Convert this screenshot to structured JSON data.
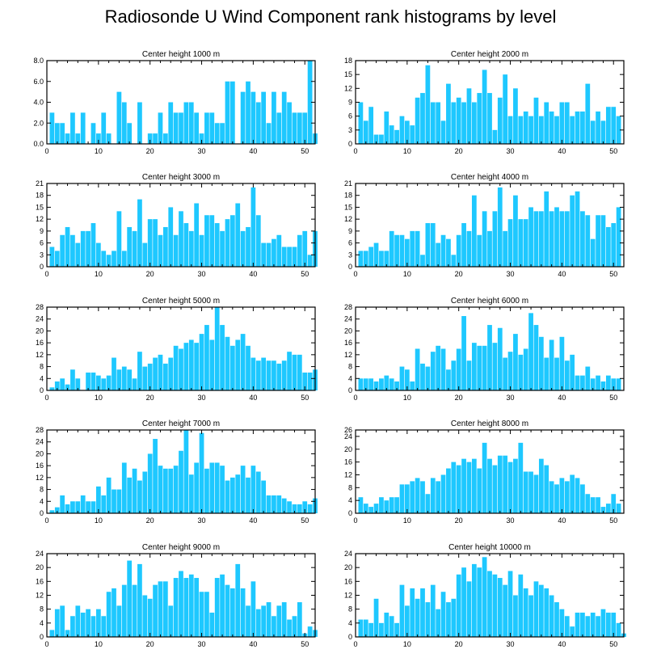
{
  "title": "Radiosonde U Wind Component rank histograms by level",
  "colors": {
    "bar": "#1ec8ff",
    "axis": "#000000"
  },
  "chart_data": [
    {
      "type": "bar",
      "title": "Center height 1000 m",
      "xlim": [
        0,
        52
      ],
      "ylim": [
        0,
        8
      ],
      "xticks": [
        0,
        10,
        20,
        30,
        40,
        50
      ],
      "xtick_labels": [
        "0",
        "10",
        "20",
        "30",
        "40",
        "50"
      ],
      "yticks": [
        0,
        2,
        4,
        6,
        8
      ],
      "ytick_labels": [
        "0.0",
        "2.0",
        "4.0",
        "6.0",
        "8.0"
      ],
      "values": [
        3,
        2,
        2,
        1,
        3,
        1,
        3,
        0,
        2,
        1,
        3,
        1,
        0,
        5,
        4,
        2,
        0,
        4,
        0,
        1,
        1,
        3,
        1,
        4,
        3,
        3,
        4,
        4,
        3,
        1,
        3,
        3,
        2,
        2,
        6,
        6,
        0,
        5,
        6,
        5,
        4,
        5,
        2,
        5,
        3,
        5,
        4,
        3,
        3,
        3,
        8,
        1
      ]
    },
    {
      "type": "bar",
      "title": "Center height 2000 m",
      "xlim": [
        0,
        52
      ],
      "ylim": [
        0,
        18
      ],
      "xticks": [
        0,
        10,
        20,
        30,
        40,
        50
      ],
      "xtick_labels": [
        "0",
        "10",
        "20",
        "30",
        "40",
        "50"
      ],
      "yticks": [
        0,
        3,
        6,
        9,
        12,
        15,
        18
      ],
      "ytick_labels": [
        "0",
        "3",
        "6",
        "9",
        "12",
        "15",
        "18"
      ],
      "values": [
        9,
        5,
        8,
        2,
        2,
        7,
        4,
        3,
        6,
        5,
        4,
        10,
        11,
        17,
        9,
        9,
        5,
        13,
        9,
        10,
        9,
        12,
        9,
        11,
        16,
        11,
        3,
        10,
        15,
        6,
        12,
        6,
        7,
        6,
        10,
        6,
        9,
        7,
        6,
        9,
        9,
        6,
        7,
        7,
        13,
        5,
        7,
        5,
        8,
        8,
        6
      ]
    },
    {
      "type": "bar",
      "title": "Center height 3000 m",
      "xlim": [
        0,
        52
      ],
      "ylim": [
        0,
        21
      ],
      "xticks": [
        0,
        10,
        20,
        30,
        40,
        50
      ],
      "xtick_labels": [
        "0",
        "10",
        "20",
        "30",
        "40",
        "50"
      ],
      "yticks": [
        0,
        3,
        6,
        9,
        12,
        15,
        18,
        21
      ],
      "ytick_labels": [
        "0",
        "3",
        "6",
        "9",
        "12",
        "15",
        "18",
        "21"
      ],
      "values": [
        5,
        4,
        8,
        10,
        8,
        6,
        9,
        9,
        11,
        6,
        4,
        3,
        4,
        14,
        4,
        10,
        9,
        17,
        6,
        12,
        12,
        8,
        10,
        15,
        8,
        14,
        11,
        9,
        16,
        8,
        13,
        13,
        11,
        9,
        12,
        13,
        16,
        9,
        10,
        20,
        13,
        6,
        6,
        7,
        8,
        5,
        5,
        5,
        8,
        9,
        3,
        9
      ]
    },
    {
      "type": "bar",
      "title": "Center height 4000 m",
      "xlim": [
        0,
        52
      ],
      "ylim": [
        0,
        21
      ],
      "xticks": [
        0,
        10,
        20,
        30,
        40,
        50
      ],
      "xtick_labels": [
        "0",
        "10",
        "20",
        "30",
        "40",
        "50"
      ],
      "yticks": [
        0,
        3,
        6,
        9,
        12,
        15,
        18,
        21
      ],
      "ytick_labels": [
        "0",
        "3",
        "6",
        "9",
        "12",
        "15",
        "18",
        "21"
      ],
      "values": [
        4,
        4,
        5,
        6,
        4,
        4,
        9,
        8,
        8,
        7,
        9,
        9,
        3,
        11,
        11,
        6,
        8,
        7,
        3,
        8,
        11,
        9,
        18,
        8,
        14,
        9,
        14,
        20,
        9,
        12,
        18,
        12,
        12,
        15,
        14,
        14,
        19,
        14,
        15,
        14,
        14,
        18,
        19,
        14,
        13,
        7,
        13,
        13,
        10,
        11,
        15
      ]
    },
    {
      "type": "bar",
      "title": "Center height 5000 m",
      "xlim": [
        0,
        52
      ],
      "ylim": [
        0,
        28
      ],
      "xticks": [
        0,
        10,
        20,
        30,
        40,
        50
      ],
      "xtick_labels": [
        "0",
        "10",
        "20",
        "30",
        "40",
        "50"
      ],
      "yticks": [
        0,
        4,
        8,
        12,
        16,
        20,
        24,
        28
      ],
      "ytick_labels": [
        "0",
        "4",
        "8",
        "12",
        "16",
        "20",
        "24",
        "28"
      ],
      "values": [
        1,
        3,
        4,
        2,
        7,
        4,
        0,
        6,
        6,
        5,
        4,
        5,
        11,
        7,
        8,
        7,
        4,
        13,
        8,
        9,
        11,
        12,
        9,
        11,
        15,
        14,
        16,
        17,
        16,
        19,
        22,
        17,
        28,
        22,
        18,
        15,
        17,
        19,
        15,
        11,
        10,
        11,
        10,
        10,
        9,
        10,
        13,
        12,
        12,
        6,
        6,
        7
      ]
    },
    {
      "type": "bar",
      "title": "Center height 6000 m",
      "xlim": [
        0,
        52
      ],
      "ylim": [
        0,
        28
      ],
      "xticks": [
        0,
        10,
        20,
        30,
        40,
        50
      ],
      "xtick_labels": [
        "0",
        "10",
        "20",
        "30",
        "40",
        "50"
      ],
      "yticks": [
        0,
        4,
        8,
        12,
        16,
        20,
        24,
        28
      ],
      "ytick_labels": [
        "0",
        "4",
        "8",
        "12",
        "16",
        "20",
        "24",
        "28"
      ],
      "values": [
        4,
        4,
        4,
        3,
        4,
        5,
        4,
        3,
        8,
        7,
        3,
        14,
        9,
        8,
        13,
        15,
        14,
        7,
        10,
        14,
        25,
        10,
        16,
        15,
        15,
        22,
        16,
        21,
        11,
        13,
        19,
        12,
        14,
        26,
        22,
        18,
        11,
        17,
        11,
        18,
        10,
        12,
        5,
        5,
        8,
        4,
        5,
        3,
        5,
        4,
        4
      ]
    },
    {
      "type": "bar",
      "title": "Center height 7000 m",
      "xlim": [
        0,
        52
      ],
      "ylim": [
        0,
        28
      ],
      "xticks": [
        0,
        10,
        20,
        30,
        40,
        50
      ],
      "xtick_labels": [
        "0",
        "10",
        "20",
        "30",
        "40",
        "50"
      ],
      "yticks": [
        0,
        4,
        8,
        12,
        16,
        20,
        24,
        28
      ],
      "ytick_labels": [
        "0",
        "4",
        "8",
        "12",
        "16",
        "20",
        "24",
        "28"
      ],
      "values": [
        1,
        2,
        6,
        3,
        4,
        4,
        6,
        4,
        4,
        9,
        6,
        12,
        8,
        8,
        17,
        12,
        15,
        11,
        14,
        20,
        25,
        16,
        15,
        15,
        16,
        21,
        28,
        13,
        17,
        27,
        15,
        17,
        17,
        16,
        11,
        12,
        13,
        16,
        12,
        16,
        14,
        11,
        6,
        6,
        6,
        5,
        4,
        3,
        3,
        4,
        3,
        5
      ]
    },
    {
      "type": "bar",
      "title": "Center height 8000 m",
      "xlim": [
        0,
        52
      ],
      "ylim": [
        0,
        26
      ],
      "xticks": [
        0,
        10,
        20,
        30,
        40,
        50
      ],
      "xtick_labels": [
        "0",
        "10",
        "20",
        "30",
        "40",
        "50"
      ],
      "yticks": [
        0,
        4,
        8,
        12,
        16,
        20,
        24,
        26
      ],
      "ytick_labels": [
        "0",
        "4",
        "8",
        "12",
        "16",
        "20",
        "24",
        "26"
      ],
      "values": [
        5,
        3,
        2,
        3,
        5,
        4,
        5,
        5,
        9,
        9,
        10,
        11,
        10,
        6,
        11,
        10,
        12,
        14,
        16,
        15,
        17,
        16,
        17,
        14,
        22,
        17,
        15,
        18,
        18,
        16,
        17,
        22,
        13,
        13,
        12,
        17,
        15,
        10,
        9,
        11,
        10,
        12,
        11,
        9,
        6,
        5,
        5,
        2,
        3,
        6,
        3
      ]
    },
    {
      "type": "bar",
      "title": "Center height 9000 m",
      "xlim": [
        0,
        52
      ],
      "ylim": [
        0,
        24
      ],
      "xticks": [
        0,
        10,
        20,
        30,
        40,
        50
      ],
      "xtick_labels": [
        "0",
        "10",
        "20",
        "30",
        "40",
        "50"
      ],
      "yticks": [
        0,
        4,
        8,
        12,
        16,
        20,
        24
      ],
      "ytick_labels": [
        "0",
        "4",
        "8",
        "12",
        "16",
        "20",
        "24"
      ],
      "values": [
        2,
        8,
        9,
        2,
        6,
        9,
        7,
        8,
        6,
        8,
        6,
        13,
        14,
        9,
        15,
        22,
        15,
        21,
        12,
        11,
        15,
        16,
        16,
        9,
        17,
        19,
        17,
        18,
        17,
        13,
        13,
        7,
        17,
        18,
        15,
        14,
        21,
        14,
        9,
        16,
        8,
        9,
        10,
        6,
        9,
        10,
        5,
        6,
        10,
        1,
        3,
        2
      ]
    },
    {
      "type": "bar",
      "title": "Center height 10000 m",
      "xlim": [
        0,
        52
      ],
      "ylim": [
        0,
        24
      ],
      "xticks": [
        0,
        10,
        20,
        30,
        40,
        50
      ],
      "xtick_labels": [
        "0",
        "10",
        "20",
        "30",
        "40",
        "50"
      ],
      "yticks": [
        0,
        4,
        8,
        12,
        16,
        20,
        24
      ],
      "ytick_labels": [
        "0",
        "4",
        "8",
        "12",
        "16",
        "20",
        "24"
      ],
      "values": [
        5,
        5,
        4,
        11,
        4,
        7,
        6,
        4,
        15,
        9,
        14,
        11,
        14,
        10,
        15,
        8,
        13,
        10,
        11,
        18,
        20,
        16,
        21,
        20,
        23,
        19,
        18,
        17,
        15,
        19,
        12,
        18,
        14,
        12,
        16,
        15,
        14,
        12,
        10,
        8,
        6,
        3,
        7,
        7,
        6,
        7,
        6,
        8,
        7,
        7,
        4,
        1
      ]
    }
  ]
}
